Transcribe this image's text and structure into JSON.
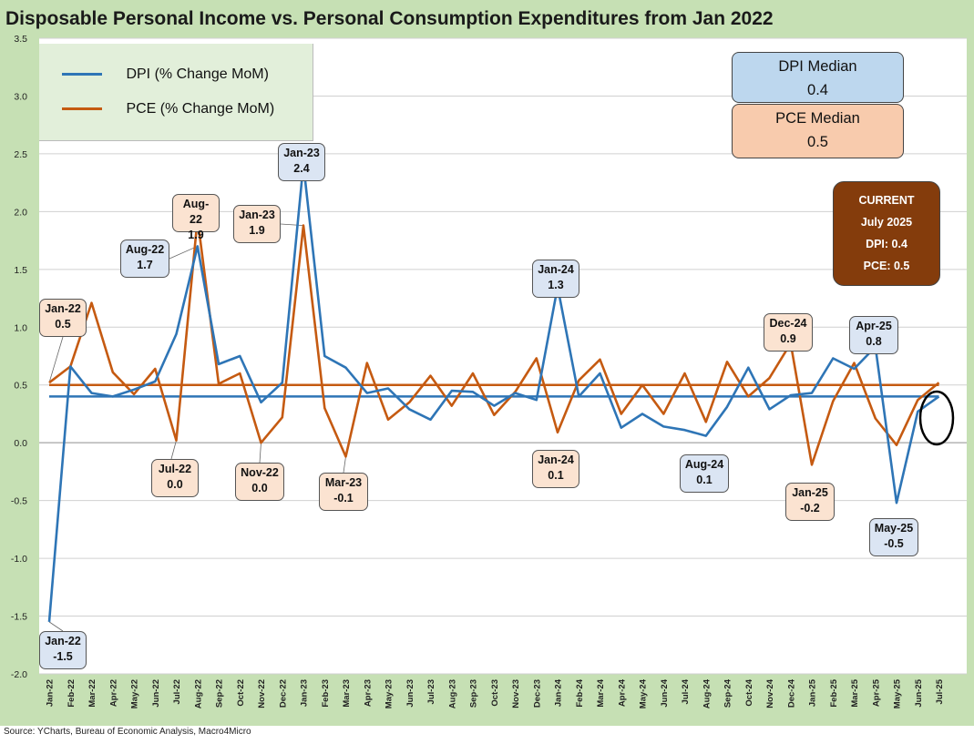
{
  "title": "Disposable Personal Income vs. Personal Consumption Expenditures from Jan 2022",
  "source": "Source: YCharts, Bureau of Economic Analysis, Macro4Micro",
  "legend": {
    "dpi": "DPI (% Change MoM)",
    "pce": "PCE (% Change MoM)"
  },
  "medians": {
    "dpi_label": "DPI Median",
    "dpi_value": "0.4",
    "pce_label": "PCE Median",
    "pce_value": "0.5"
  },
  "current": {
    "heading": "CURRENT",
    "period": "July 2025",
    "dpi": "DPI:  0.4",
    "pce": "PCE:  0.5"
  },
  "colors": {
    "dpi": "#2e75b6",
    "pce": "#c55a11",
    "background": "#c6e0b4",
    "current_box": "#843c0c"
  },
  "callouts": [
    {
      "id": "dpi-jan22",
      "series": "dpi",
      "period": "Jan-22",
      "value": "-1.5"
    },
    {
      "id": "pce-jan22",
      "series": "pce",
      "period": "Jan-22",
      "value": "0.5"
    },
    {
      "id": "dpi-aug22",
      "series": "dpi",
      "period": "Aug-22",
      "value": "1.7"
    },
    {
      "id": "pce-aug22",
      "series": "pce",
      "period": "Aug-22",
      "value": "1.9"
    },
    {
      "id": "pce-jul22",
      "series": "pce",
      "period": "Jul-22",
      "value": "0.0"
    },
    {
      "id": "pce-nov22",
      "series": "pce",
      "period": "Nov-22",
      "value": "0.0"
    },
    {
      "id": "dpi-jan23",
      "series": "dpi",
      "period": "Jan-23",
      "value": "2.4"
    },
    {
      "id": "pce-jan23",
      "series": "pce",
      "period": "Jan-23",
      "value": "1.9"
    },
    {
      "id": "pce-mar23",
      "series": "pce",
      "period": "Mar-23",
      "value": "-0.1"
    },
    {
      "id": "dpi-jan24",
      "series": "dpi",
      "period": "Jan-24",
      "value": "1.3"
    },
    {
      "id": "pce-jan24",
      "series": "pce",
      "period": "Jan-24",
      "value": "0.1"
    },
    {
      "id": "dpi-aug24",
      "series": "dpi",
      "period": "Aug-24",
      "value": "0.1"
    },
    {
      "id": "pce-dec24",
      "series": "pce",
      "period": "Dec-24",
      "value": "0.9"
    },
    {
      "id": "pce-jan25",
      "series": "pce",
      "period": "Jan-25",
      "value": "-0.2"
    },
    {
      "id": "dpi-apr25",
      "series": "dpi",
      "period": "Apr-25",
      "value": "0.8"
    },
    {
      "id": "dpi-may25",
      "series": "dpi",
      "period": "May-25",
      "value": "-0.5"
    }
  ],
  "chart_data": {
    "type": "line",
    "title": "Disposable Personal Income vs. Personal Consumption Expenditures from Jan 2022",
    "ylim": [
      -2.0,
      3.5
    ],
    "yticks": [
      -2.0,
      -1.5,
      -1.0,
      -0.5,
      0.0,
      0.5,
      1.0,
      1.5,
      2.0,
      2.5,
      3.0,
      3.5
    ],
    "grid": true,
    "legend_position": "top-left",
    "categories": [
      "Jan-22",
      "Feb-22",
      "Mar-22",
      "Apr-22",
      "May-22",
      "Jun-22",
      "Jul-22",
      "Aug-22",
      "Sep-22",
      "Oct-22",
      "Nov-22",
      "Dec-22",
      "Jan-23",
      "Feb-23",
      "Mar-23",
      "Apr-23",
      "May-23",
      "Jun-23",
      "Jul-23",
      "Aug-23",
      "Sep-23",
      "Oct-23",
      "Nov-23",
      "Dec-23",
      "Jan-24",
      "Feb-24",
      "Mar-24",
      "Apr-24",
      "May-24",
      "Jun-24",
      "Jul-24",
      "Aug-24",
      "Sep-24",
      "Oct-24",
      "Nov-24",
      "Dec-24",
      "Jan-25",
      "Feb-25",
      "Mar-25",
      "Apr-25",
      "May-25",
      "Jun-25",
      "Jul-25"
    ],
    "series": [
      {
        "name": "DPI (% Change MoM)",
        "values": [
          -1.55,
          0.66,
          0.43,
          0.4,
          0.46,
          0.53,
          0.94,
          1.7,
          0.68,
          0.75,
          0.35,
          0.52,
          2.41,
          0.75,
          0.65,
          0.43,
          0.47,
          0.29,
          0.2,
          0.45,
          0.44,
          0.32,
          0.43,
          0.37,
          1.35,
          0.4,
          0.6,
          0.13,
          0.25,
          0.14,
          0.11,
          0.06,
          0.31,
          0.65,
          0.29,
          0.41,
          0.43,
          0.73,
          0.64,
          0.83,
          -0.52,
          0.27,
          0.4
        ]
      },
      {
        "name": "PCE (% Change MoM)",
        "values": [
          0.52,
          0.66,
          1.21,
          0.61,
          0.42,
          0.64,
          0.02,
          1.94,
          0.51,
          0.6,
          0.0,
          0.22,
          1.88,
          0.3,
          -0.12,
          0.69,
          0.2,
          0.35,
          0.58,
          0.32,
          0.6,
          0.24,
          0.44,
          0.73,
          0.09,
          0.54,
          0.72,
          0.25,
          0.5,
          0.25,
          0.6,
          0.18,
          0.7,
          0.4,
          0.56,
          0.86,
          -0.19,
          0.36,
          0.69,
          0.21,
          -0.02,
          0.37,
          0.52
        ]
      }
    ],
    "reference_lines": [
      {
        "name": "DPI Median",
        "value": 0.4
      },
      {
        "name": "PCE Median",
        "value": 0.5
      }
    ]
  }
}
